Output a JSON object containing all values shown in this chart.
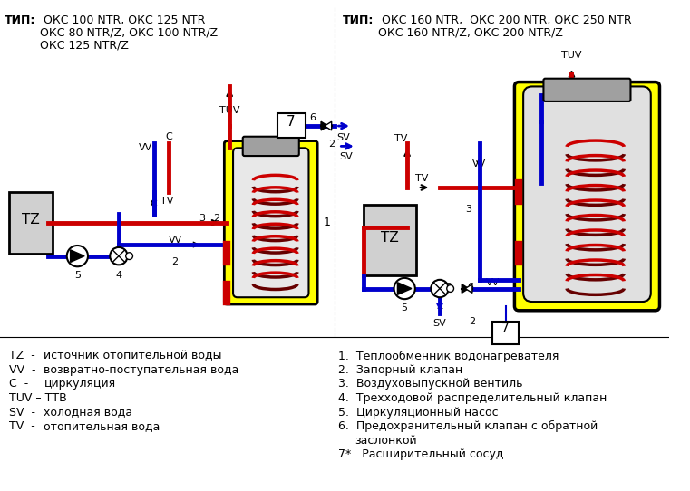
{
  "bg_color": "#ffffff",
  "title1_bold": "ТИП:",
  "title1_text": " ОКС 100 NTR, ОКС 125 NTR\n       ОКС 80 NTR/Z, ОКС 100 NTR/Z\n       ОКС 125 NTR/Z",
  "title2_bold": "ТИП:",
  "title2_text": " ОКС 160 NTR,  ОКС 200 NTR, ОКС 250 NTR\n       ОКС 160 NTR/Z, ОКС 200 NTR/Z",
  "legend_left": [
    "TZ  -   источник отопительной воды",
    "VV  -   возвратно-поступательная вода",
    "С  -    циркуляция",
    "TUV – ТТВ",
    "SV  -   холодная вода",
    "TV  -   отопительная вода"
  ],
  "legend_right": [
    "1.  Теплообменник водонагревателя",
    "2.  Запорный клапан",
    "3.  Воздуховыпускной вентиль",
    "4.  Трехходовой распределительный клапан",
    "5.  Циркуляционный насос",
    "6.  Предохранительный клапан с обратной\n      заслонкой",
    "7*. Расширительный сосуд"
  ],
  "red": "#cc0000",
  "blue": "#0000cc",
  "dark_red": "#8b0000",
  "yellow": "#ffff00",
  "gray_box": "#c0c0c0",
  "dark_gray": "#808080",
  "line_width": 3.5,
  "thin_line": 1.5
}
